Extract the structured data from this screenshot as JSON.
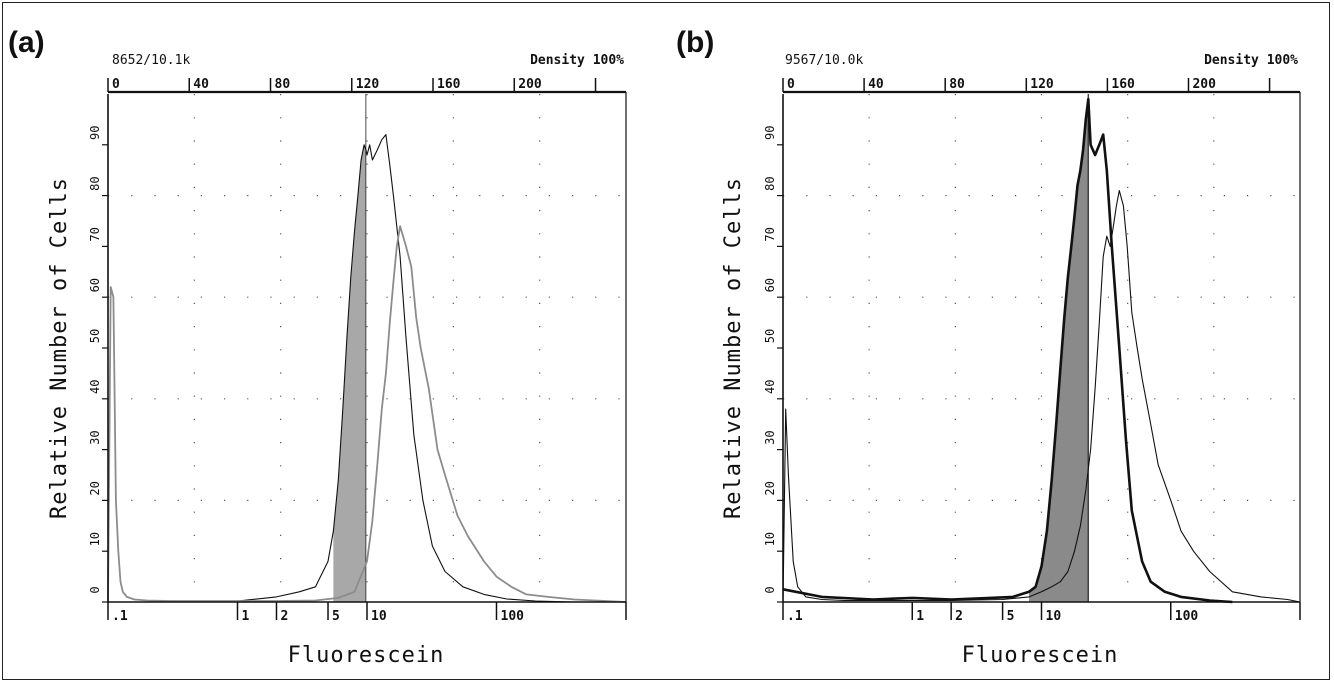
{
  "chart_data": [
    {
      "panel_label": "(a)",
      "type": "line",
      "header_left": "8652/10.1k",
      "header_right": "Density 100%",
      "xlabel": "Fluorescein",
      "ylabel": "Relative Number of Cells",
      "x_scale": "log",
      "xlim": [
        0.1,
        1000
      ],
      "ylim": [
        0,
        100
      ],
      "bottom_ticks": [
        ".1",
        "1",
        "2",
        "5",
        "10",
        "100"
      ],
      "top_ticks": [
        "0",
        "40",
        "80",
        "120",
        "160",
        "200"
      ],
      "left_ticks": [
        "0",
        "10",
        "20",
        "30",
        "40",
        "50",
        "60",
        "70",
        "80",
        "90"
      ],
      "grid": true,
      "marker_line_x": 9.8,
      "shaded_range": [
        5.5,
        9.8
      ],
      "series": [
        {
          "style": "thin-black",
          "x": [
            0.11,
            0.13,
            0.14,
            0.15,
            0.18,
            0.25,
            0.5,
            1,
            2,
            3,
            4,
            5,
            5.5,
            6,
            6.5,
            7,
            7.5,
            8,
            8.5,
            9,
            9.5,
            9.8,
            10,
            10.5,
            11,
            12,
            13,
            14,
            15,
            16,
            18,
            20,
            23,
            27,
            32,
            40,
            55,
            80,
            120,
            200,
            400,
            900
          ],
          "y": [
            0,
            0,
            0,
            0,
            0,
            0,
            0,
            0.2,
            1,
            2,
            3,
            8,
            14,
            24,
            38,
            52,
            64,
            73,
            80,
            87,
            90,
            89,
            88,
            90,
            87,
            89,
            91,
            92,
            86,
            80,
            68,
            52,
            33,
            20,
            11,
            6,
            3,
            1.5,
            0.6,
            0.2,
            0,
            0
          ]
        },
        {
          "style": "gray",
          "x": [
            0.1,
            0.105,
            0.11,
            0.115,
            0.12,
            0.125,
            0.13,
            0.14,
            0.16,
            0.2,
            0.3,
            0.5,
            1,
            2,
            4,
            6,
            8,
            10,
            11,
            12,
            13,
            14,
            15,
            16,
            17,
            18,
            19,
            20,
            22,
            24,
            26,
            30,
            35,
            40,
            50,
            60,
            80,
            100,
            130,
            170,
            250,
            400,
            700,
            1000
          ],
          "y": [
            0,
            62,
            60,
            20,
            10,
            4,
            2,
            1,
            0.5,
            0.3,
            0.2,
            0.2,
            0.2,
            0.2,
            0.3,
            0.8,
            2,
            8,
            16,
            27,
            38,
            45,
            55,
            63,
            70,
            74,
            72,
            70,
            66,
            56,
            50,
            42,
            30,
            25,
            17,
            13,
            8,
            5,
            3,
            1.5,
            1,
            0.5,
            0.2,
            0
          ]
        }
      ]
    },
    {
      "panel_label": "(b)",
      "type": "line",
      "header_left": "9567/10.0k",
      "header_right": "Density 100%",
      "xlabel": "Fluorescein",
      "ylabel": "Relative Number of Cells",
      "x_scale": "log",
      "xlim": [
        0.1,
        1000
      ],
      "ylim": [
        0,
        100
      ],
      "bottom_ticks": [
        ".1",
        "1",
        "2",
        "5",
        "10",
        "100"
      ],
      "top_ticks": [
        "0",
        "40",
        "80",
        "120",
        "160",
        "200"
      ],
      "left_ticks": [
        "0",
        "10",
        "20",
        "30",
        "40",
        "50",
        "60",
        "70",
        "80",
        "90"
      ],
      "grid": true,
      "marker_line_x": 23,
      "shaded_range": [
        8,
        23
      ],
      "series": [
        {
          "style": "thick-black",
          "x": [
            0.1,
            0.2,
            0.5,
            1,
            2,
            4,
            6,
            8,
            9,
            10,
            11,
            12,
            13,
            14,
            15,
            16,
            17,
            18,
            19,
            20,
            21,
            22,
            23,
            24,
            26,
            28,
            30,
            32,
            35,
            40,
            45,
            50,
            60,
            70,
            90,
            120,
            200,
            300
          ],
          "y": [
            2.5,
            1,
            0.5,
            0.8,
            0.5,
            0.8,
            1,
            2,
            3,
            7,
            14,
            24,
            35,
            46,
            56,
            64,
            70,
            76,
            82,
            85,
            89,
            95,
            99,
            90,
            88,
            90,
            92,
            85,
            70,
            50,
            32,
            18,
            8,
            4,
            2,
            1,
            0.3,
            0
          ]
        },
        {
          "style": "thin-black",
          "x": [
            0.1,
            0.105,
            0.11,
            0.12,
            0.13,
            0.15,
            0.2,
            0.3,
            0.5,
            1,
            2,
            5,
            8,
            10,
            12,
            14,
            16,
            18,
            20,
            22,
            24,
            26,
            28,
            30,
            32,
            34,
            36,
            38,
            40,
            43,
            46,
            50,
            55,
            60,
            70,
            80,
            100,
            120,
            150,
            200,
            300,
            500,
            800,
            1000
          ],
          "y": [
            0,
            38,
            25,
            8,
            3,
            1,
            0.5,
            0.3,
            0.3,
            0.3,
            0.3,
            0.5,
            1,
            2,
            3,
            4,
            6,
            10,
            15,
            22,
            30,
            42,
            55,
            68,
            72,
            70,
            74,
            78,
            81,
            78,
            70,
            57,
            50,
            44,
            35,
            27,
            20,
            14,
            10,
            6,
            2,
            1,
            0.5,
            0
          ]
        }
      ]
    }
  ]
}
